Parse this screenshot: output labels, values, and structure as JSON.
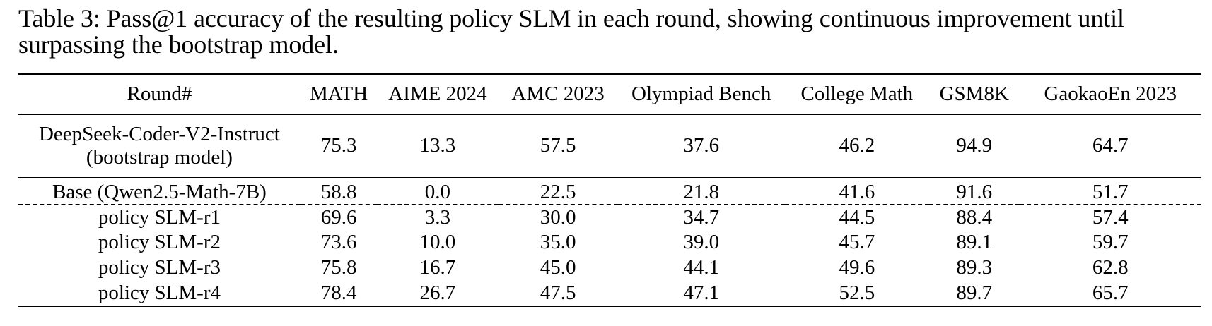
{
  "caption": "Table 3: Pass@1 accuracy of the resulting policy SLM in each round, showing continuous improvement until surpassing the bootstrap model.",
  "table": {
    "headers": [
      "Round#",
      "MATH",
      "AIME 2024",
      "AMC 2023",
      "Olympiad Bench",
      "College Math",
      "GSM8K",
      "GaokaoEn 2023"
    ],
    "bootstrap": {
      "label_line1": "DeepSeek-Coder-V2-Instruct",
      "label_line2": "(bootstrap model)",
      "values": [
        "75.3",
        "13.3",
        "57.5",
        "37.6",
        "46.2",
        "94.9",
        "64.7"
      ]
    },
    "rows": [
      {
        "label": "Base (Qwen2.5-Math-7B)",
        "values": [
          "58.8",
          "0.0",
          "22.5",
          "21.8",
          "41.6",
          "91.6",
          "51.7"
        ]
      },
      {
        "label": "policy SLM-r1",
        "values": [
          "69.6",
          "3.3",
          "30.0",
          "34.7",
          "44.5",
          "88.4",
          "57.4"
        ]
      },
      {
        "label": "policy SLM-r2",
        "values": [
          "73.6",
          "10.0",
          "35.0",
          "39.0",
          "45.7",
          "89.1",
          "59.7"
        ]
      },
      {
        "label": "policy SLM-r3",
        "values": [
          "75.8",
          "16.7",
          "45.0",
          "44.1",
          "49.6",
          "89.3",
          "62.8"
        ]
      },
      {
        "label": "policy SLM-r4",
        "values": [
          "78.4",
          "26.7",
          "47.5",
          "47.1",
          "52.5",
          "89.7",
          "65.7"
        ]
      }
    ]
  }
}
